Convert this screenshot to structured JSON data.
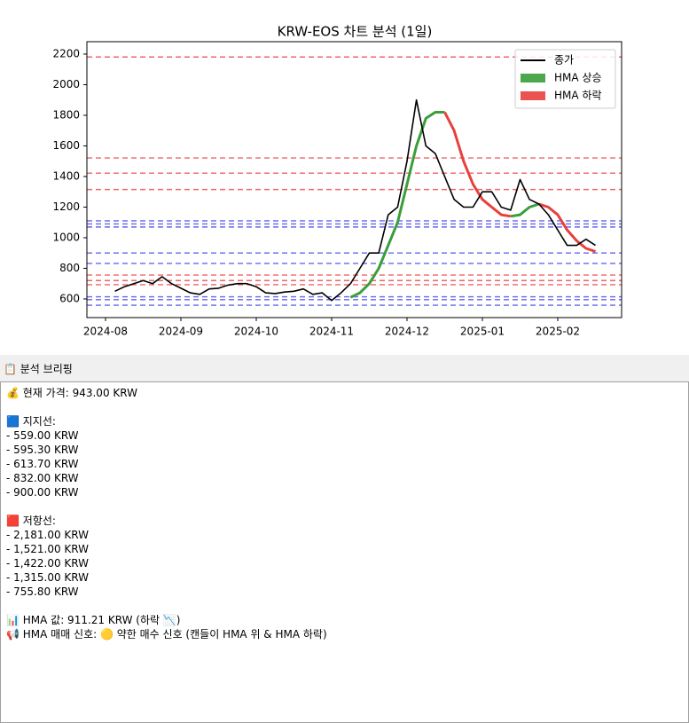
{
  "chart_data": {
    "type": "line",
    "title": "KRW-EOS 차트 분석 (1일)",
    "categories": [
      "2024-08",
      null,
      null,
      null,
      null,
      null,
      null,
      null,
      "2024-09",
      null,
      null,
      null,
      null,
      null,
      null,
      null,
      "2024-10",
      null,
      null,
      null,
      null,
      null,
      null,
      null,
      "2024-11",
      null,
      null,
      null,
      null,
      null,
      null,
      null,
      "2024-12",
      null,
      null,
      null,
      null,
      null,
      null,
      null,
      "2025-01",
      null,
      null,
      null,
      null,
      null,
      null,
      null,
      "2025-02",
      null,
      null,
      null,
      null
    ],
    "series": [
      {
        "name": "종가",
        "color": "#000000",
        "values": [
          null,
          650,
          680,
          700,
          720,
          700,
          745,
          700,
          670,
          640,
          630,
          665,
          670,
          690,
          700,
          700,
          680,
          640,
          635,
          645,
          650,
          665,
          630,
          640,
          590,
          640,
          700,
          800,
          900,
          900,
          1150,
          1200,
          1500,
          1900,
          1600,
          1550,
          1400,
          1250,
          1200,
          1200,
          1300,
          1300,
          1200,
          1180,
          1380,
          1250,
          1220,
          1150,
          1050,
          950,
          950,
          990,
          950
        ]
      },
      {
        "name": "HMA 상승",
        "color": "#3a9e3a",
        "values": [
          null,
          null,
          null,
          null,
          null,
          null,
          null,
          null,
          null,
          null,
          null,
          null,
          null,
          null,
          null,
          null,
          null,
          null,
          null,
          null,
          null,
          null,
          null,
          null,
          null,
          null,
          610,
          640,
          700,
          800,
          950,
          1100,
          1350,
          1600,
          1780,
          1820,
          1820,
          null,
          null,
          null,
          null,
          null,
          null,
          1140,
          1150,
          1200,
          1220,
          null,
          null,
          null,
          null,
          null,
          null
        ]
      },
      {
        "name": "HMA 하락",
        "color": "#e8403c",
        "values": [
          null,
          null,
          null,
          null,
          null,
          null,
          null,
          null,
          null,
          null,
          null,
          null,
          null,
          null,
          null,
          null,
          null,
          null,
          null,
          null,
          null,
          null,
          null,
          null,
          null,
          null,
          null,
          null,
          null,
          null,
          null,
          null,
          null,
          null,
          null,
          null,
          1820,
          1700,
          1500,
          1350,
          1250,
          1200,
          1150,
          1140,
          null,
          null,
          1220,
          1200,
          1150,
          1050,
          980,
          930,
          910
        ]
      }
    ],
    "hlines": [
      {
        "color": "#6666ee",
        "values": [
          559,
          595.3,
          613.7,
          832,
          900,
          1070,
          1090,
          1110
        ]
      },
      {
        "color": "#ee6666",
        "values": [
          2181,
          1521,
          1422,
          1315,
          755.8,
          720,
          693
        ]
      }
    ],
    "ylim": [
      478,
      2281
    ],
    "yticks": [
      600,
      800,
      1000,
      1200,
      1400,
      1600,
      1800,
      2000,
      2200
    ],
    "legend": "upper right"
  },
  "panel": {
    "title": "📋 분석 브리핑",
    "price": "💰 현재 가격: 943.00 KRW",
    "support_title": "🟦 지지선:",
    "supports": [
      "- 559.00 KRW",
      "- 595.30 KRW",
      "- 613.70 KRW",
      "- 832.00 KRW",
      "- 900.00 KRW"
    ],
    "resistance_title": "🟥 저항선:",
    "resistances": [
      "- 2,181.00 KRW",
      "- 1,521.00 KRW",
      "- 1,422.00 KRW",
      "- 1,315.00 KRW",
      "- 755.80 KRW"
    ],
    "hma": "📊 HMA 값: 911.21 KRW (하락 📉)",
    "signal": "📢 HMA 매매 신호: 🟡 약한 매수 신호 (캔들이 HMA 위 & HMA 하락)"
  }
}
